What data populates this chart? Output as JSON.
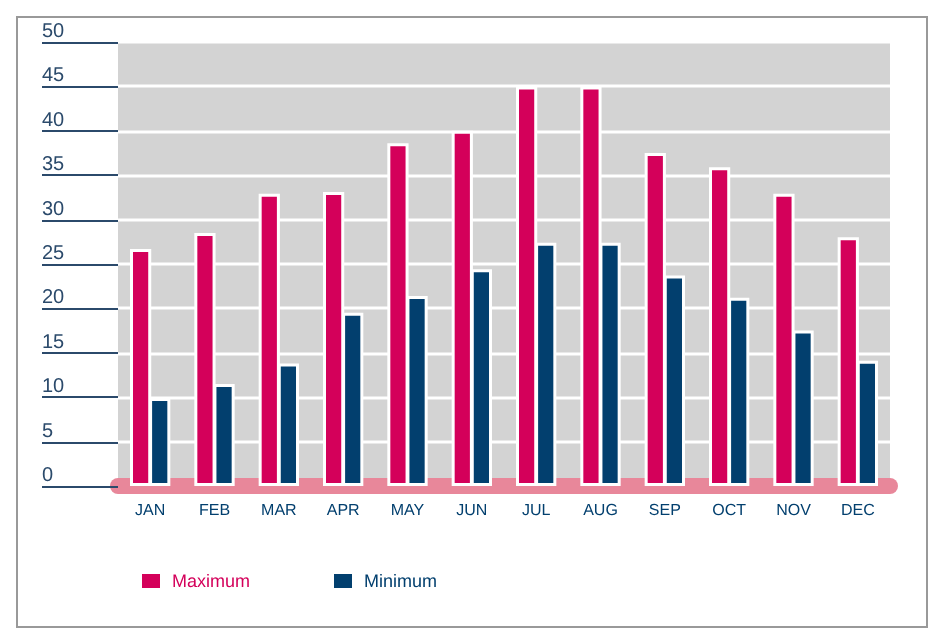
{
  "chart_data": {
    "type": "bar",
    "categories": [
      "JAN",
      "FEB",
      "MAR",
      "APR",
      "MAY",
      "JUN",
      "JUL",
      "AUG",
      "SEP",
      "OCT",
      "NOV",
      "DEC"
    ],
    "series": [
      {
        "name": "Maximum",
        "color": "#d4005a",
        "values": [
          26.7,
          28.5,
          32.9,
          33.1,
          38.6,
          40,
          45,
          45,
          37.5,
          35.9,
          32.9,
          28
        ]
      },
      {
        "name": "Minimum",
        "color": "#023f6e",
        "values": [
          9.9,
          11.5,
          13.8,
          19.5,
          21.4,
          24.4,
          27.4,
          27.4,
          23.7,
          21.2,
          17.5,
          14.1
        ]
      }
    ],
    "ylim": [
      0,
      50
    ],
    "yticks": [
      0,
      5,
      10,
      15,
      20,
      25,
      30,
      35,
      40,
      45,
      50
    ],
    "grid": "y",
    "legend": "bottom left"
  }
}
